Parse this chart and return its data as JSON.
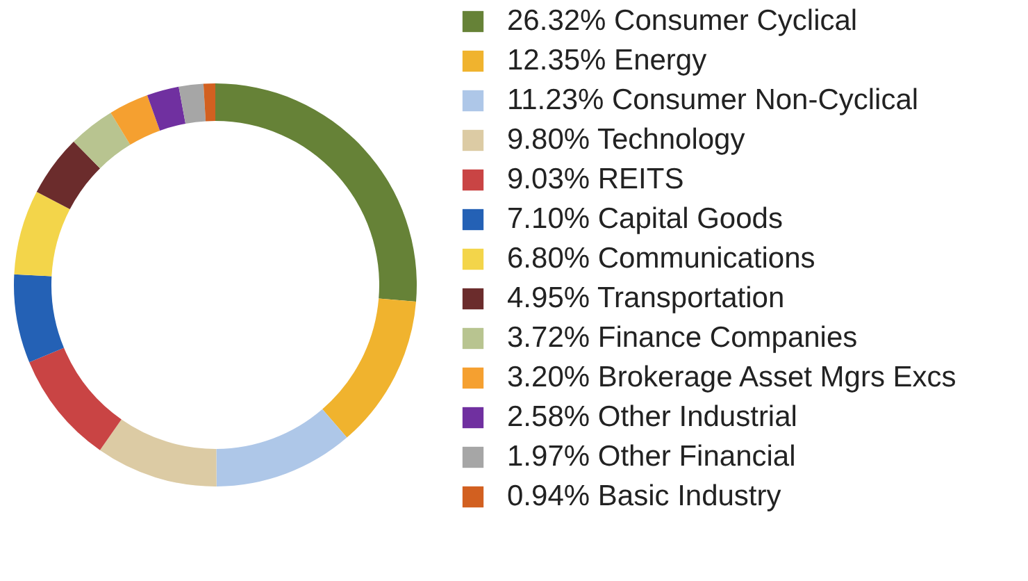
{
  "chart_data": {
    "type": "donut",
    "categories": [
      "Consumer Cyclical",
      "Energy",
      "Consumer Non-Cyclical",
      "Technology",
      "REITS",
      "Capital Goods",
      "Communications",
      "Transportation",
      "Finance Companies",
      "Brokerage Asset Mgrs Excs",
      "Other Industrial",
      "Other Financial",
      "Basic Industry"
    ],
    "values": [
      26.32,
      12.35,
      11.23,
      9.8,
      9.03,
      7.1,
      6.8,
      4.95,
      3.72,
      3.2,
      2.58,
      1.97,
      0.94
    ],
    "value_labels": [
      "26.32%",
      "12.35%",
      "11.23%",
      "9.80%",
      "9.03%",
      "7.10%",
      "6.80%",
      "4.95%",
      "3.72%",
      "3.20%",
      "2.58%",
      "1.97%",
      "0.94%"
    ],
    "colors": [
      "#668237",
      "#f0b32e",
      "#aec7e8",
      "#dccba4",
      "#c94444",
      "#2461b5",
      "#f3d54a",
      "#6b2c2c",
      "#b8c490",
      "#f5a030",
      "#7030a0",
      "#a6a6a6",
      "#d26020"
    ],
    "legend": "right"
  }
}
